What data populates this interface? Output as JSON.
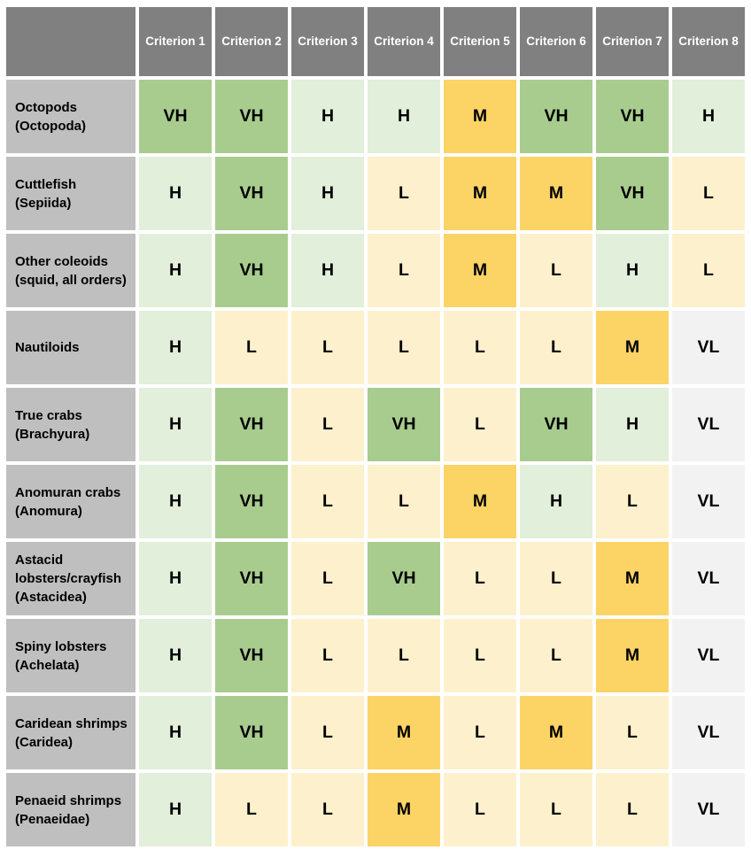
{
  "theme": {
    "page_background": "#ffffff",
    "header_bg": "#808080",
    "header_text": "#ffffff",
    "row_label_bg": "#bfbfbf",
    "cell_text": "#000000",
    "grid_gap_color": "#ffffff"
  },
  "chart_data": {
    "type": "heatmap",
    "title": "",
    "legend_position": "none",
    "columns": [
      "Criterion 1",
      "Criterion 2",
      "Criterion 3",
      "Criterion 4",
      "Criterion 5",
      "Criterion 6",
      "Criterion 7",
      "Criterion 8"
    ],
    "level_colors": {
      "VH": "#a8cc8e",
      "H": "#e2efda",
      "M": "#fcd365",
      "L": "#fdf0cc",
      "VL": "#f2f2f2"
    },
    "rows": [
      {
        "label": "Octopods (Octopoda)",
        "values": [
          "VH",
          "VH",
          "H",
          "H",
          "M",
          "VH",
          "VH",
          "H"
        ]
      },
      {
        "label": "Cuttlefish (Sepiida)",
        "values": [
          "H",
          "VH",
          "H",
          "L",
          "M",
          "M",
          "VH",
          "L"
        ]
      },
      {
        "label": "Other coleoids (squid, all orders)",
        "values": [
          "H",
          "VH",
          "H",
          "L",
          "M",
          "L",
          "H",
          "L"
        ]
      },
      {
        "label": "Nautiloids",
        "values": [
          "H",
          "L",
          "L",
          "L",
          "L",
          "L",
          "M",
          "VL"
        ]
      },
      {
        "label": "True crabs (Brachyura)",
        "values": [
          "H",
          "VH",
          "L",
          "VH",
          "L",
          "VH",
          "H",
          "VL"
        ]
      },
      {
        "label": "Anomuran crabs (Anomura)",
        "values": [
          "H",
          "VH",
          "L",
          "L",
          "M",
          "H",
          "L",
          "VL"
        ]
      },
      {
        "label": "Astacid lobsters/crayfish (Astacidea)",
        "values": [
          "H",
          "VH",
          "L",
          "VH",
          "L",
          "L",
          "M",
          "VL"
        ]
      },
      {
        "label": "Spiny lobsters (Achelata)",
        "values": [
          "H",
          "VH",
          "L",
          "L",
          "L",
          "L",
          "M",
          "VL"
        ]
      },
      {
        "label": "Caridean shrimps (Caridea)",
        "values": [
          "H",
          "VH",
          "L",
          "M",
          "L",
          "M",
          "L",
          "VL"
        ]
      },
      {
        "label": "Penaeid shrimps (Penaeidae)",
        "values": [
          "H",
          "L",
          "L",
          "M",
          "L",
          "L",
          "L",
          "VL"
        ]
      }
    ]
  }
}
